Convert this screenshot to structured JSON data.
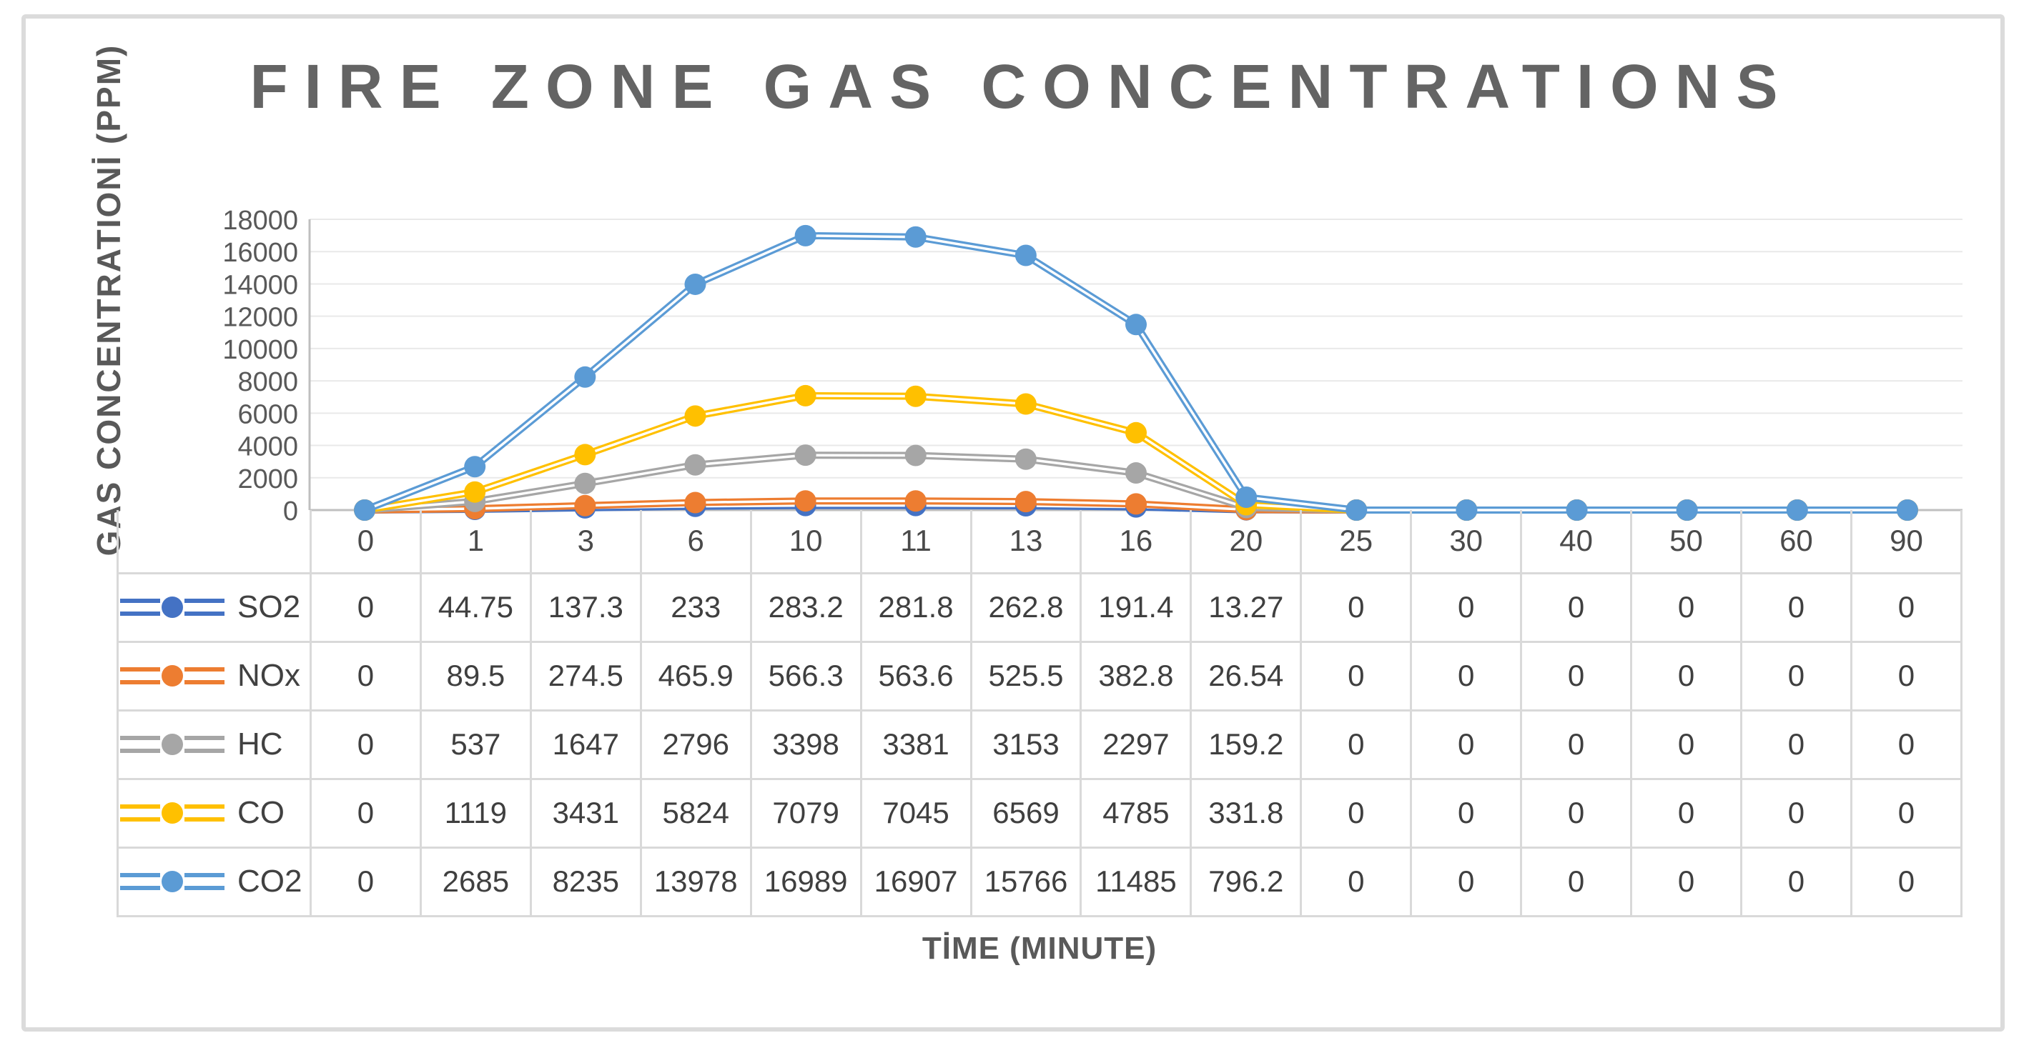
{
  "title": "FIRE ZONE GAS CONCENTRATIONS",
  "chart_data": {
    "type": "line",
    "title": "FIRE ZONE GAS CONCENTRATIONS",
    "xlabel": "TİME (MINUTE)",
    "ylabel": "GAS CONCENTRATIONİ (PPM)",
    "ylim": [
      0,
      18000
    ],
    "ytick_interval": 2000,
    "grid": true,
    "legend_position": "table-left",
    "marker": "circle",
    "line_style": "double-line-with-markers",
    "categories": [
      "0",
      "1",
      "3",
      "6",
      "10",
      "11",
      "13",
      "16",
      "20",
      "25",
      "30",
      "40",
      "50",
      "60",
      "90"
    ],
    "series": [
      {
        "name": "SO2",
        "color": "#4472C4",
        "values": [
          0,
          44.75,
          137.3,
          233,
          283.2,
          281.8,
          262.8,
          191.4,
          13.27,
          0,
          0,
          0,
          0,
          0,
          0
        ]
      },
      {
        "name": "NOx",
        "color": "#ED7D31",
        "values": [
          0,
          89.5,
          274.5,
          465.9,
          566.3,
          563.6,
          525.5,
          382.8,
          26.54,
          0,
          0,
          0,
          0,
          0,
          0
        ]
      },
      {
        "name": "HC",
        "color": "#A6A6A6",
        "values": [
          0,
          537,
          1647,
          2796,
          3398,
          3381,
          3153,
          2297,
          159.2,
          0,
          0,
          0,
          0,
          0,
          0
        ]
      },
      {
        "name": "CO",
        "color": "#FFC000",
        "values": [
          0,
          1119,
          3431,
          5824,
          7079,
          7045,
          6569,
          4785,
          331.8,
          0,
          0,
          0,
          0,
          0,
          0
        ]
      },
      {
        "name": "CO2",
        "color": "#5B9BD5",
        "values": [
          0,
          2685,
          8235,
          13978,
          16989,
          16907,
          15766,
          11485,
          796.2,
          0,
          0,
          0,
          0,
          0,
          0
        ]
      }
    ],
    "colors": {
      "title_text": "#646464",
      "axis_text": "#595959",
      "table_text": "#3F3F3F",
      "gridline": "#E9E9E9",
      "axis_line": "#BFBFBF",
      "table_border": "#D9D9D9"
    }
  }
}
